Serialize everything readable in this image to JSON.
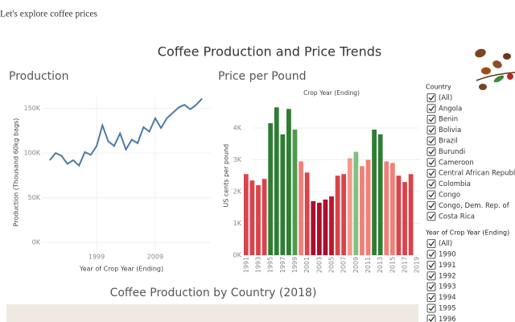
{
  "header": {
    "title": "Let's explore coffee prices"
  },
  "dashboard_title": "Coffee Production and Price Trends",
  "bottom_section_title": "Coffee Production by Country (2018)",
  "chart_data": [
    {
      "type": "line",
      "title": "Production",
      "x_label": "Year of Crop Year (Ending)",
      "y_label": "Production (Thousand 60kg bags)",
      "x": [
        1991,
        1992,
        1993,
        1994,
        1995,
        1996,
        1997,
        1998,
        1999,
        2000,
        2001,
        2002,
        2003,
        2004,
        2005,
        2006,
        2007,
        2008,
        2009,
        2010,
        2011,
        2012,
        2013,
        2014,
        2015,
        2016,
        2017
      ],
      "series": [
        {
          "name": "Production",
          "color": "#4e79a7",
          "values": [
            92000,
            100000,
            97000,
            88000,
            92000,
            86000,
            101000,
            98000,
            108000,
            131000,
            113000,
            108000,
            122000,
            104000,
            115000,
            111000,
            129000,
            124000,
            139000,
            128000,
            139000,
            145000,
            151000,
            154000,
            149000,
            154000,
            161000
          ]
        }
      ],
      "xlim": [
        1988,
        2018.5
      ],
      "xticks": [
        1999,
        2009
      ],
      "ylim": [
        -8000,
        165000
      ],
      "yticks": [
        {
          "value": 0,
          "label": "0K"
        },
        {
          "value": 50000,
          "label": "50K"
        },
        {
          "value": 100000,
          "label": "100K"
        },
        {
          "value": 150000,
          "label": "150K"
        }
      ],
      "grid": true
    },
    {
      "type": "bar",
      "title": "Price per Pound",
      "subtitle": "Crop Year (Ending)",
      "y_label": "US cents per pound",
      "categories": [
        "1991",
        null,
        "1993",
        null,
        "1995",
        null,
        "1997",
        null,
        "1999",
        null,
        "2001",
        null,
        "2003",
        null,
        "2005",
        null,
        "2007",
        null,
        "2009",
        null,
        "2011",
        null,
        "2013",
        null,
        "2015",
        null,
        "2017",
        null,
        "2019"
      ],
      "values": [
        2550,
        2350,
        2200,
        2400,
        4150,
        4650,
        3800,
        4600,
        3950,
        2950,
        2600,
        1700,
        1650,
        1750,
        1850,
        2500,
        2550,
        3050,
        3250,
        2800,
        3000,
        3950,
        3800,
        2950,
        2900,
        2500,
        2300,
        2550,
        null
      ],
      "colors": [
        "#d9434b",
        "#d9434b",
        "#d9434b",
        "#d9434b",
        "#2f7d35",
        "#2f7d35",
        "#2f7d35",
        "#2f7d35",
        "#4c9b4f",
        "#f08078",
        "#d9434b",
        "#a8102e",
        "#a8102e",
        "#a8102e",
        "#b8182f",
        "#d9434b",
        "#d9434b",
        "#f29a8c",
        "#7fc27f",
        "#f08078",
        "#f08078",
        "#2f7d35",
        "#2f7d35",
        "#f08078",
        "#f08078",
        "#d9434b",
        "#d9434b",
        "#d9434b",
        null
      ],
      "ylim": [
        0,
        5000
      ],
      "yticks": [
        {
          "value": 0,
          "label": "0K"
        },
        {
          "value": 1000,
          "label": "1K"
        },
        {
          "value": 2000,
          "label": "2K"
        },
        {
          "value": 3000,
          "label": "3K"
        },
        {
          "value": 4000,
          "label": "4K"
        }
      ],
      "grid": true
    }
  ],
  "filters": [
    {
      "title": "Country",
      "items": [
        "(All)",
        "Angola",
        "Benin",
        "Bolivia",
        "Brazil",
        "Burundi",
        "Cameroon",
        "Central African Republic",
        "Colombia",
        "Congo",
        "Congo, Dem. Rep. of",
        "Costa Rica"
      ]
    },
    {
      "title": "Year of Crop Year (Ending)",
      "items": [
        "(All)",
        "1990",
        "1991",
        "1992",
        "1993",
        "1994",
        "1995",
        "1996"
      ]
    }
  ]
}
